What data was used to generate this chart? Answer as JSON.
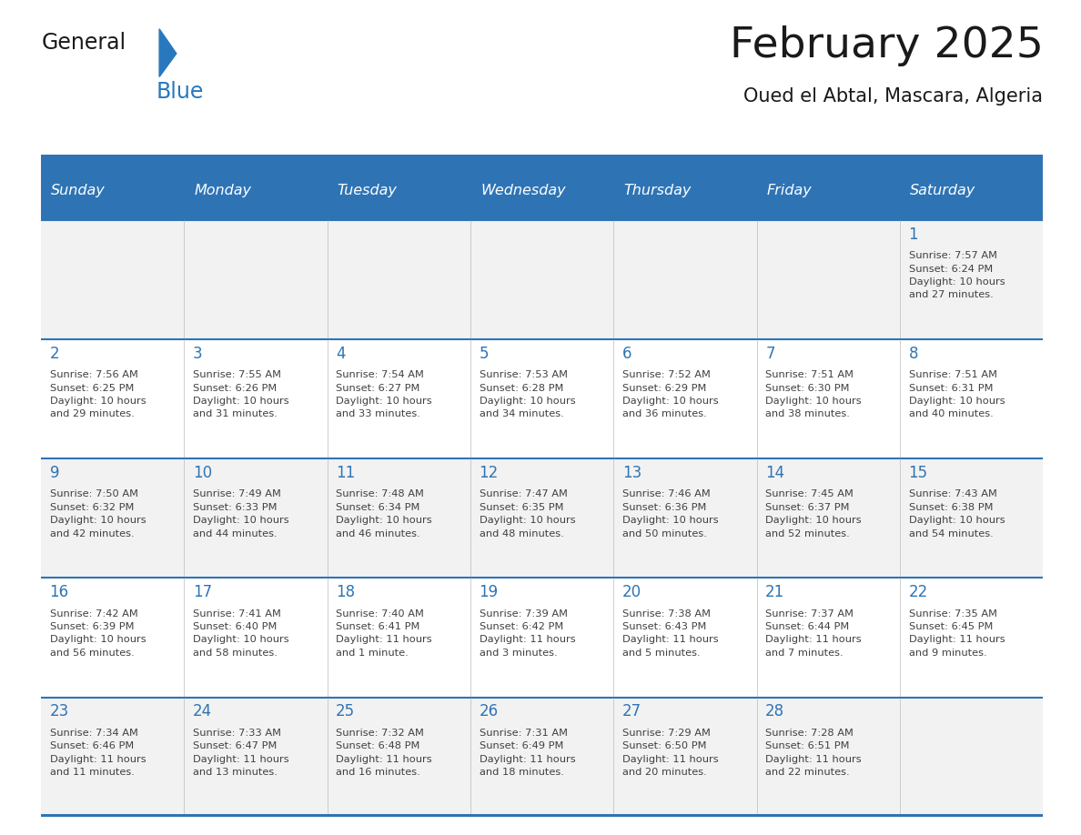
{
  "title": "February 2025",
  "subtitle": "Oued el Abtal, Mascara, Algeria",
  "days_of_week": [
    "Sunday",
    "Monday",
    "Tuesday",
    "Wednesday",
    "Thursday",
    "Friday",
    "Saturday"
  ],
  "header_bg": "#2E74B5",
  "header_text": "#FFFFFF",
  "row_bg_even": "#F2F2F2",
  "row_bg_odd": "#FFFFFF",
  "border_color": "#2E74B5",
  "day_num_color": "#2E74B5",
  "text_color": "#404040",
  "title_color": "#1a1a1a",
  "logo_text_color": "#1a1a1a",
  "logo_blue_color": "#2878BE",
  "calendar_data": [
    [
      {
        "day": null,
        "info": null
      },
      {
        "day": null,
        "info": null
      },
      {
        "day": null,
        "info": null
      },
      {
        "day": null,
        "info": null
      },
      {
        "day": null,
        "info": null
      },
      {
        "day": null,
        "info": null
      },
      {
        "day": 1,
        "info": "Sunrise: 7:57 AM\nSunset: 6:24 PM\nDaylight: 10 hours\nand 27 minutes."
      }
    ],
    [
      {
        "day": 2,
        "info": "Sunrise: 7:56 AM\nSunset: 6:25 PM\nDaylight: 10 hours\nand 29 minutes."
      },
      {
        "day": 3,
        "info": "Sunrise: 7:55 AM\nSunset: 6:26 PM\nDaylight: 10 hours\nand 31 minutes."
      },
      {
        "day": 4,
        "info": "Sunrise: 7:54 AM\nSunset: 6:27 PM\nDaylight: 10 hours\nand 33 minutes."
      },
      {
        "day": 5,
        "info": "Sunrise: 7:53 AM\nSunset: 6:28 PM\nDaylight: 10 hours\nand 34 minutes."
      },
      {
        "day": 6,
        "info": "Sunrise: 7:52 AM\nSunset: 6:29 PM\nDaylight: 10 hours\nand 36 minutes."
      },
      {
        "day": 7,
        "info": "Sunrise: 7:51 AM\nSunset: 6:30 PM\nDaylight: 10 hours\nand 38 minutes."
      },
      {
        "day": 8,
        "info": "Sunrise: 7:51 AM\nSunset: 6:31 PM\nDaylight: 10 hours\nand 40 minutes."
      }
    ],
    [
      {
        "day": 9,
        "info": "Sunrise: 7:50 AM\nSunset: 6:32 PM\nDaylight: 10 hours\nand 42 minutes."
      },
      {
        "day": 10,
        "info": "Sunrise: 7:49 AM\nSunset: 6:33 PM\nDaylight: 10 hours\nand 44 minutes."
      },
      {
        "day": 11,
        "info": "Sunrise: 7:48 AM\nSunset: 6:34 PM\nDaylight: 10 hours\nand 46 minutes."
      },
      {
        "day": 12,
        "info": "Sunrise: 7:47 AM\nSunset: 6:35 PM\nDaylight: 10 hours\nand 48 minutes."
      },
      {
        "day": 13,
        "info": "Sunrise: 7:46 AM\nSunset: 6:36 PM\nDaylight: 10 hours\nand 50 minutes."
      },
      {
        "day": 14,
        "info": "Sunrise: 7:45 AM\nSunset: 6:37 PM\nDaylight: 10 hours\nand 52 minutes."
      },
      {
        "day": 15,
        "info": "Sunrise: 7:43 AM\nSunset: 6:38 PM\nDaylight: 10 hours\nand 54 minutes."
      }
    ],
    [
      {
        "day": 16,
        "info": "Sunrise: 7:42 AM\nSunset: 6:39 PM\nDaylight: 10 hours\nand 56 minutes."
      },
      {
        "day": 17,
        "info": "Sunrise: 7:41 AM\nSunset: 6:40 PM\nDaylight: 10 hours\nand 58 minutes."
      },
      {
        "day": 18,
        "info": "Sunrise: 7:40 AM\nSunset: 6:41 PM\nDaylight: 11 hours\nand 1 minute."
      },
      {
        "day": 19,
        "info": "Sunrise: 7:39 AM\nSunset: 6:42 PM\nDaylight: 11 hours\nand 3 minutes."
      },
      {
        "day": 20,
        "info": "Sunrise: 7:38 AM\nSunset: 6:43 PM\nDaylight: 11 hours\nand 5 minutes."
      },
      {
        "day": 21,
        "info": "Sunrise: 7:37 AM\nSunset: 6:44 PM\nDaylight: 11 hours\nand 7 minutes."
      },
      {
        "day": 22,
        "info": "Sunrise: 7:35 AM\nSunset: 6:45 PM\nDaylight: 11 hours\nand 9 minutes."
      }
    ],
    [
      {
        "day": 23,
        "info": "Sunrise: 7:34 AM\nSunset: 6:46 PM\nDaylight: 11 hours\nand 11 minutes."
      },
      {
        "day": 24,
        "info": "Sunrise: 7:33 AM\nSunset: 6:47 PM\nDaylight: 11 hours\nand 13 minutes."
      },
      {
        "day": 25,
        "info": "Sunrise: 7:32 AM\nSunset: 6:48 PM\nDaylight: 11 hours\nand 16 minutes."
      },
      {
        "day": 26,
        "info": "Sunrise: 7:31 AM\nSunset: 6:49 PM\nDaylight: 11 hours\nand 18 minutes."
      },
      {
        "day": 27,
        "info": "Sunrise: 7:29 AM\nSunset: 6:50 PM\nDaylight: 11 hours\nand 20 minutes."
      },
      {
        "day": 28,
        "info": "Sunrise: 7:28 AM\nSunset: 6:51 PM\nDaylight: 11 hours\nand 22 minutes."
      },
      {
        "day": null,
        "info": null
      }
    ]
  ]
}
